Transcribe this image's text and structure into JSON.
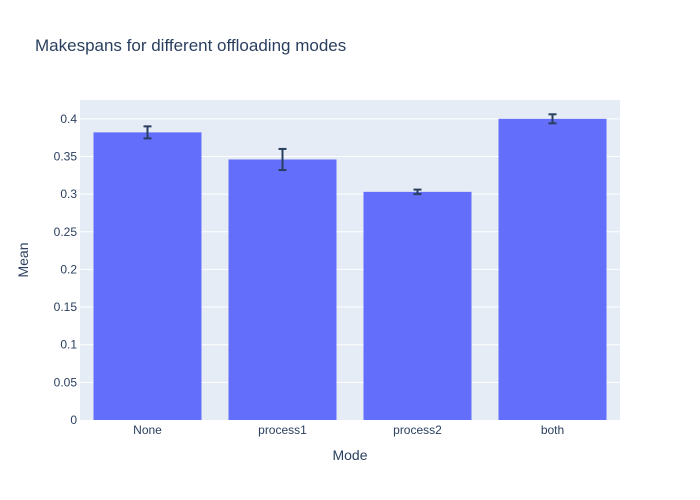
{
  "chart_data": {
    "type": "bar",
    "title": "Makespans for different offloading modes",
    "xlabel": "Mode",
    "ylabel": "Mean",
    "categories": [
      "None",
      "process1",
      "process2",
      "both"
    ],
    "values": [
      0.382,
      0.346,
      0.303,
      0.4
    ],
    "error": [
      0.008,
      0.014,
      0.003,
      0.006
    ],
    "ylim": [
      0,
      0.425
    ],
    "yticks": [
      0,
      0.05,
      0.1,
      0.15,
      0.2,
      0.25,
      0.3,
      0.35,
      0.4
    ],
    "ytick_labels": [
      "0",
      "0.05",
      "0.1",
      "0.15",
      "0.2",
      "0.25",
      "0.3",
      "0.35",
      "0.4"
    ],
    "grid": true,
    "colors": {
      "bar": "#636efa",
      "plot_bg": "#e5ecf6",
      "grid": "#ffffff",
      "text": "#2a3f5f",
      "error_bar": "#2a3f5f"
    }
  }
}
